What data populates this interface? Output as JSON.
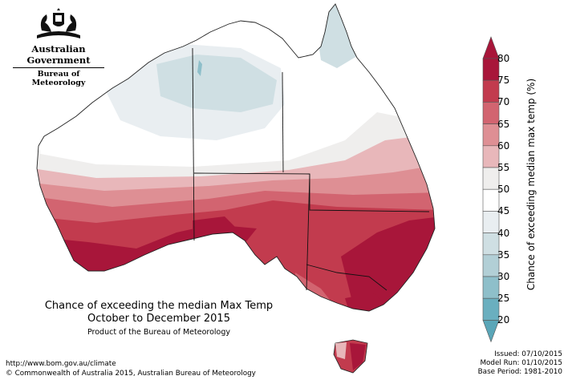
{
  "logo": {
    "government": "Australian Government",
    "bureau": "Bureau of Meteorology",
    "icon": "coat-of-arms-icon"
  },
  "map": {
    "caption_line1": "Chance of exceeding the median Max Temp",
    "caption_line2": "October to December 2015",
    "caption_line3": "Product of the Bureau of Meteorology"
  },
  "legend": {
    "title": "Chance of exceeding median max temp (%)",
    "ticks": [
      "80",
      "75",
      "70",
      "65",
      "60",
      "55",
      "50",
      "45",
      "40",
      "35",
      "30",
      "25",
      "20"
    ],
    "colors": [
      "#a8163a",
      "#c23b4e",
      "#d26470",
      "#de8f94",
      "#e8b7ba",
      "#efeeed",
      "#ffffff",
      "#e9eef1",
      "#cfdfe3",
      "#b2cfd6",
      "#8ebfca",
      "#6aafbf"
    ],
    "arrow_top_color": "#a8163a",
    "arrow_bottom_color": "#5aa6b8"
  },
  "footer": {
    "url": "http://www.bom.gov.au/climate",
    "copyright": "© Commonwealth of Australia 2015, Australian Bureau of Meteorology",
    "issued": "Issued: 07/10/2015",
    "model_run": "Model Run: 01/10/2015",
    "base_period": "Base Period: 1981-2010"
  }
}
